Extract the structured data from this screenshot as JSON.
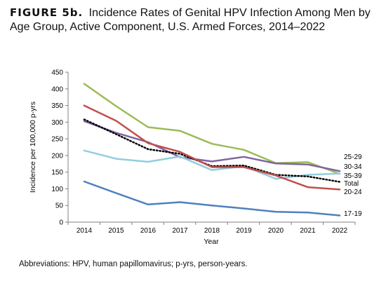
{
  "figure": {
    "label": "FIGURE 5b.",
    "title": "Incidence Rates of Genital HPV Infection Among Men by Age Group, Active Component, U.S. Armed Forces, 2014–2022"
  },
  "footnote": "Abbreviations: HPV, human papillomavirus; p-yrs, person-years.",
  "chart_data": {
    "type": "line",
    "title": "FIGURE 5b. Incidence Rates of Genital HPV Infection Among Men by Age Group, Active Component, U.S. Armed Forces, 2014–2022",
    "xlabel": "Year",
    "ylabel": "Incidence per 100,000 p-yrs",
    "x": [
      "2014",
      "2015",
      "2016",
      "2017",
      "2018",
      "2019",
      "2020",
      "2021",
      "2022"
    ],
    "ylim": [
      0,
      450
    ],
    "yticks": [
      0,
      50,
      100,
      150,
      200,
      250,
      300,
      350,
      400,
      450
    ],
    "grid": false,
    "legend": "direct labels at right end of lines",
    "series": [
      {
        "name": "25-29",
        "color": "#9bbb59",
        "dash": false,
        "values": [
          415,
          348,
          285,
          274,
          235,
          217,
          177,
          180,
          145
        ]
      },
      {
        "name": "30-34",
        "color": "#8064a2",
        "dash": false,
        "values": [
          303,
          268,
          240,
          195,
          182,
          196,
          176,
          173,
          153
        ]
      },
      {
        "name": "35-39",
        "color": "#93cddd",
        "dash": false,
        "values": [
          215,
          190,
          181,
          197,
          156,
          168,
          130,
          142,
          146
        ]
      },
      {
        "name": "Total",
        "color": "#000000",
        "dash": true,
        "values": [
          308,
          264,
          219,
          205,
          168,
          170,
          142,
          137,
          121
        ]
      },
      {
        "name": "20-24",
        "color": "#c0504d",
        "dash": false,
        "values": [
          350,
          304,
          237,
          211,
          165,
          165,
          140,
          105,
          98
        ]
      },
      {
        "name": "17-19",
        "color": "#4f81bd",
        "dash": false,
        "values": [
          122,
          87,
          53,
          60,
          50,
          41,
          31,
          29,
          20
        ]
      }
    ],
    "end_labels": [
      {
        "text": "25-29"
      },
      {
        "text": "30-34"
      },
      {
        "text": "35-39"
      },
      {
        "text": "Total"
      },
      {
        "text": "20-24"
      },
      {
        "text": "17-19"
      }
    ]
  }
}
